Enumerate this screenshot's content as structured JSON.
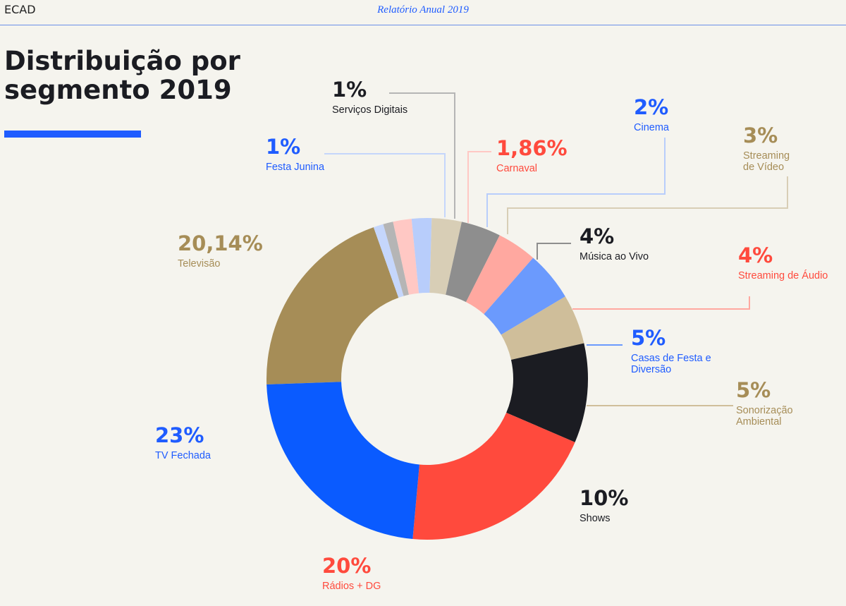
{
  "header": {
    "logo": "ECAD",
    "title": "Relatório Anual 2019"
  },
  "page": {
    "title": "Distribuição por segmento 2019"
  },
  "chart_data": {
    "type": "pie",
    "variant": "donut",
    "title": "Distribuição por segmento 2019",
    "legend": "none",
    "slices": [
      {
        "value_label": "20,14%",
        "value": 20.14,
        "label": "Televisão",
        "color": "#a68d57",
        "label_color": "#a68d57"
      },
      {
        "value_label": "1%",
        "value": 1,
        "label": "Festa Junina",
        "color": "#c5d6fb",
        "label_color": "#1f5cff"
      },
      {
        "value_label": "1%",
        "value": 1,
        "label": "Serviços Digitais",
        "color": "#b5b5b5",
        "label_color": "#1b1c22"
      },
      {
        "value_label": "1,86%",
        "value": 1.86,
        "label": "Carnaval",
        "color": "#ffc8c4",
        "label_color": "#ff4a3d"
      },
      {
        "value_label": "2%",
        "value": 2,
        "label": "Cinema",
        "color": "#b8cdfb",
        "label_color": "#1f5cff"
      },
      {
        "value_label": "3%",
        "value": 3,
        "label": "Streaming de Vídeo",
        "color": "#d8ceb6",
        "label_color": "#a68d57"
      },
      {
        "value_label": "4%",
        "value": 4,
        "label": "Música ao Vivo",
        "color": "#8e8e8e",
        "label_color": "#1b1c22"
      },
      {
        "value_label": "4%",
        "value": 4,
        "label": "Streaming de Áudio",
        "color": "#ffa8a0",
        "label_color": "#ff4a3d"
      },
      {
        "value_label": "5%",
        "value": 5,
        "label": "Casas de Festa e Diversão",
        "color": "#6b9afd",
        "label_color": "#1f5cff"
      },
      {
        "value_label": "5%",
        "value": 5,
        "label": "Sonorização Ambiental",
        "color": "#cfbe9a",
        "label_color": "#a68d57"
      },
      {
        "value_label": "10%",
        "value": 10,
        "label": "Shows",
        "color": "#1b1c22",
        "label_color": "#1b1c22"
      },
      {
        "value_label": "20%",
        "value": 20,
        "label": "Rádios + DG",
        "color": "#ff4a3d",
        "label_color": "#ff4a3d"
      },
      {
        "value_label": "23%",
        "value": 23,
        "label": "TV Fechada",
        "color": "#0a5bff",
        "label_color": "#1f5cff"
      }
    ]
  }
}
